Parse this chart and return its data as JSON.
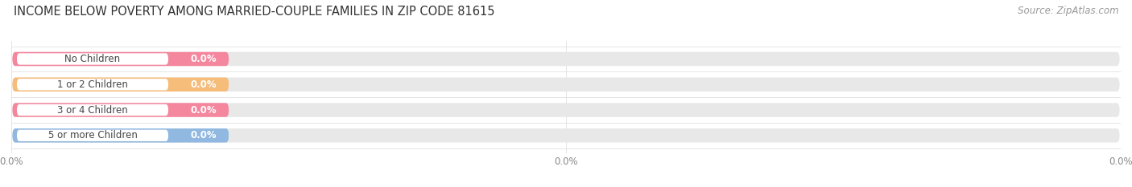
{
  "title": "INCOME BELOW POVERTY AMONG MARRIED-COUPLE FAMILIES IN ZIP CODE 81615",
  "source": "Source: ZipAtlas.com",
  "categories": [
    "No Children",
    "1 or 2 Children",
    "3 or 4 Children",
    "5 or more Children"
  ],
  "values": [
    0.0,
    0.0,
    0.0,
    0.0
  ],
  "bar_colors": [
    "#f4879e",
    "#f5bc7a",
    "#f4879e",
    "#90b8e0"
  ],
  "background_color": "#ffffff",
  "bar_bg_color": "#e8e8e8",
  "title_fontsize": 10.5,
  "source_fontsize": 8.5,
  "label_fontsize": 8.5,
  "value_fontsize": 8.5
}
